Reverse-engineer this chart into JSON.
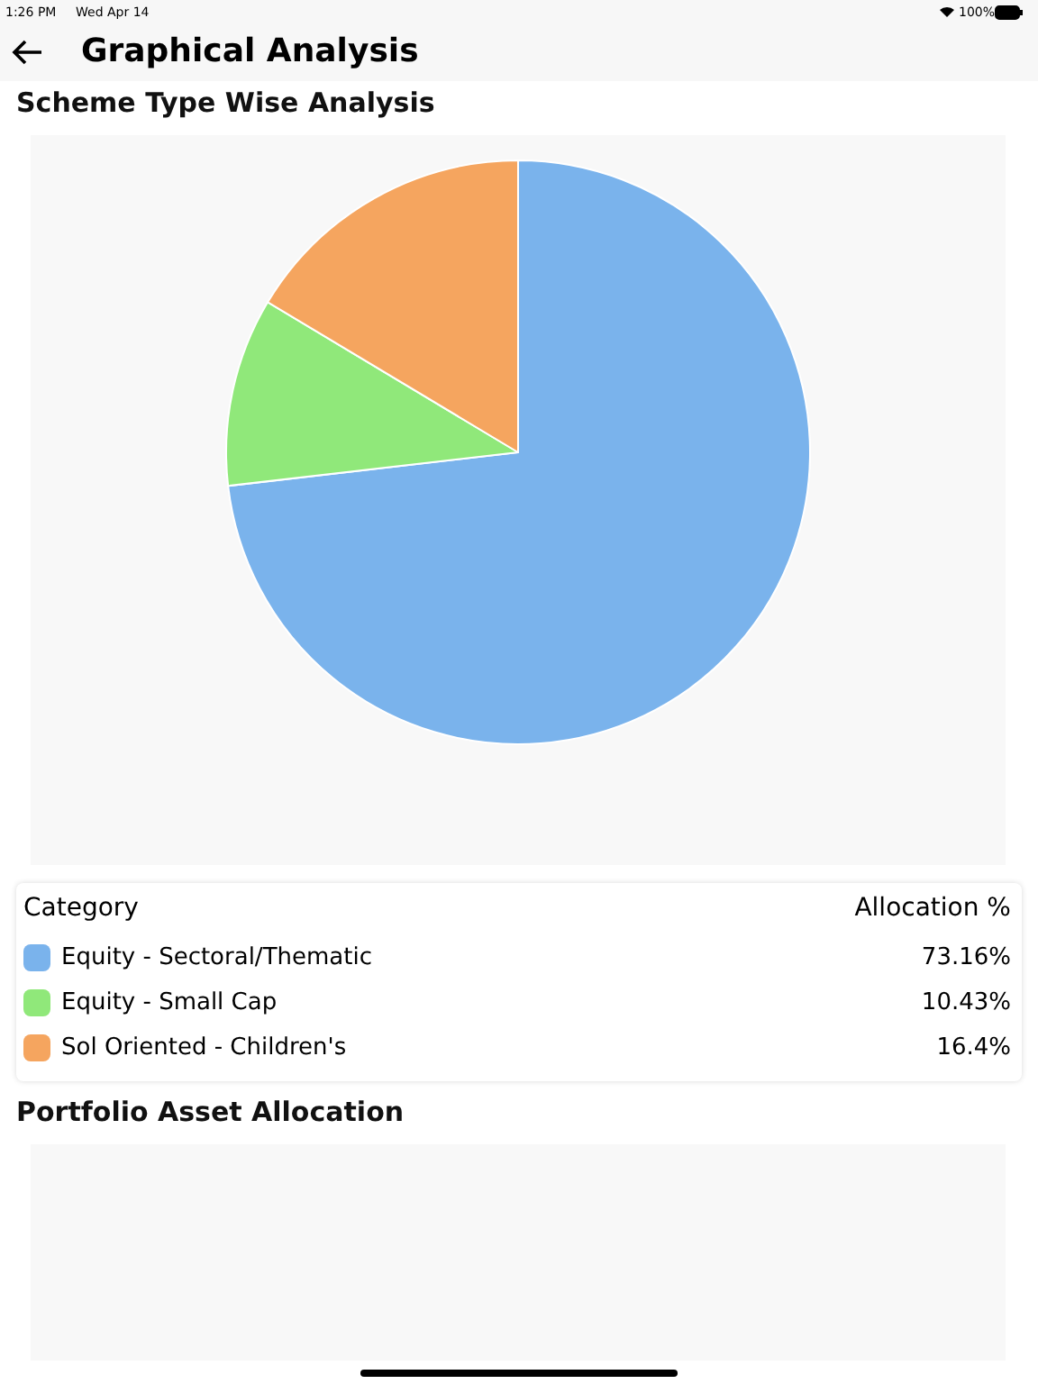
{
  "chart_data": [
    {
      "type": "pie",
      "title": "Scheme Type Wise Analysis",
      "categories": [
        "Equity - Sectoral/Thematic",
        "Equity - Small Cap",
        "Sol Oriented - Children's"
      ],
      "values": [
        73.16,
        10.43,
        16.4
      ],
      "colors": [
        "#7ab3ec",
        "#90e87a",
        "#f5a55f"
      ],
      "legend": "bottom",
      "legend_title": "Category",
      "value_labels": [
        "73.16%",
        "10.43%",
        "16.4%"
      ],
      "annotations": [
        "1:26 PM",
        "Wed Apr 14",
        "100%",
        "Graphical Analysis",
        "Allocation %"
      ]
    },
    {
      "type": "other",
      "title": "Portfolio Asset Allocation"
    }
  ]
}
